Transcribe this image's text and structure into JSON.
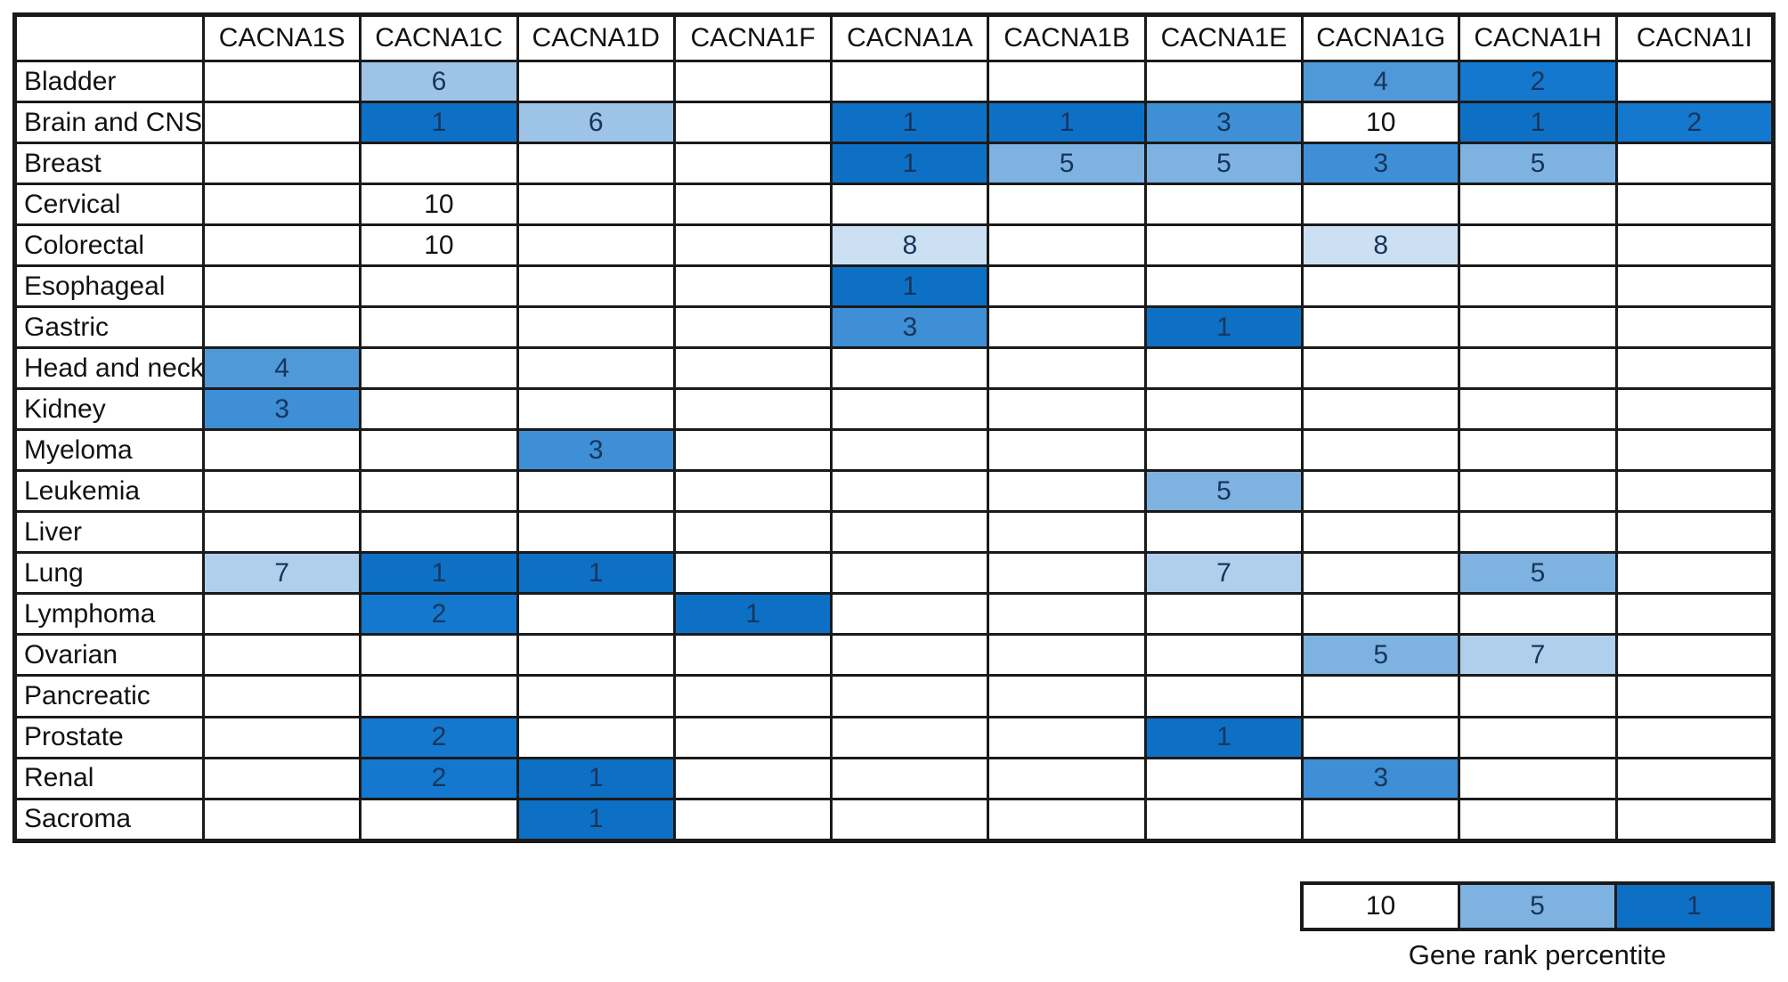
{
  "chart_data": {
    "type": "heatmap",
    "columns": [
      "CACNA1S",
      "CACNA1C",
      "CACNA1D",
      "CACNA1F",
      "CACNA1A",
      "CACNA1B",
      "CACNA1E",
      "CACNA1G",
      "CACNA1H",
      "CACNA1I"
    ],
    "rows": [
      "Bladder",
      "Brain and CNS",
      "Breast",
      "Cervical",
      "Colorectal",
      "Esophageal",
      "Gastric",
      "Head and neck",
      "Kidney",
      "Myeloma",
      "Leukemia",
      "Liver",
      "Lung",
      "Lymphoma",
      "Ovarian",
      "Pancreatic",
      "Prostate",
      "Renal",
      "Sacroma"
    ],
    "values": [
      [
        null,
        6,
        null,
        null,
        null,
        null,
        null,
        4,
        2,
        null
      ],
      [
        null,
        1,
        6,
        null,
        1,
        1,
        3,
        10,
        1,
        2
      ],
      [
        null,
        null,
        null,
        null,
        1,
        5,
        5,
        3,
        5,
        null
      ],
      [
        null,
        10,
        null,
        null,
        null,
        null,
        null,
        null,
        null,
        null
      ],
      [
        null,
        10,
        null,
        null,
        8,
        null,
        null,
        8,
        null,
        null
      ],
      [
        null,
        null,
        null,
        null,
        1,
        null,
        null,
        null,
        null,
        null
      ],
      [
        null,
        null,
        null,
        null,
        3,
        null,
        1,
        null,
        null,
        null
      ],
      [
        4,
        null,
        null,
        null,
        null,
        null,
        null,
        null,
        null,
        null
      ],
      [
        3,
        null,
        null,
        null,
        null,
        null,
        null,
        null,
        null,
        null
      ],
      [
        null,
        null,
        3,
        null,
        null,
        null,
        null,
        null,
        null,
        null
      ],
      [
        null,
        null,
        null,
        null,
        null,
        null,
        5,
        null,
        null,
        null
      ],
      [
        null,
        null,
        null,
        null,
        null,
        null,
        null,
        null,
        null,
        null
      ],
      [
        7,
        1,
        1,
        null,
        null,
        null,
        7,
        null,
        5,
        null
      ],
      [
        null,
        2,
        null,
        1,
        null,
        null,
        null,
        null,
        null,
        null
      ],
      [
        null,
        null,
        null,
        null,
        null,
        null,
        null,
        5,
        7,
        null
      ],
      [
        null,
        null,
        null,
        null,
        null,
        null,
        null,
        null,
        null,
        null
      ],
      [
        null,
        2,
        null,
        null,
        null,
        null,
        1,
        null,
        null,
        null
      ],
      [
        null,
        2,
        1,
        null,
        null,
        null,
        null,
        3,
        null,
        null
      ],
      [
        null,
        null,
        1,
        null,
        null,
        null,
        null,
        null,
        null,
        null
      ]
    ],
    "color_scale": {
      "1": "#0e70c5",
      "2": "#1478ce",
      "3": "#3e8fd6",
      "4": "#4f99d9",
      "5": "#7eb2e1",
      "6": "#9dc3e6",
      "7": "#b0cfec",
      "8": "#cce0f3",
      "10": "#ffffff"
    },
    "number_color_on_fill": "#17355c",
    "number_color_on_white": "#121212",
    "legend": {
      "caption": "Gene rank percentite",
      "items": [
        {
          "label": "10",
          "color": "#ffffff"
        },
        {
          "label": "5",
          "color": "#7eb2e1"
        },
        {
          "label": "1",
          "color": "#0e70c5"
        }
      ]
    }
  }
}
